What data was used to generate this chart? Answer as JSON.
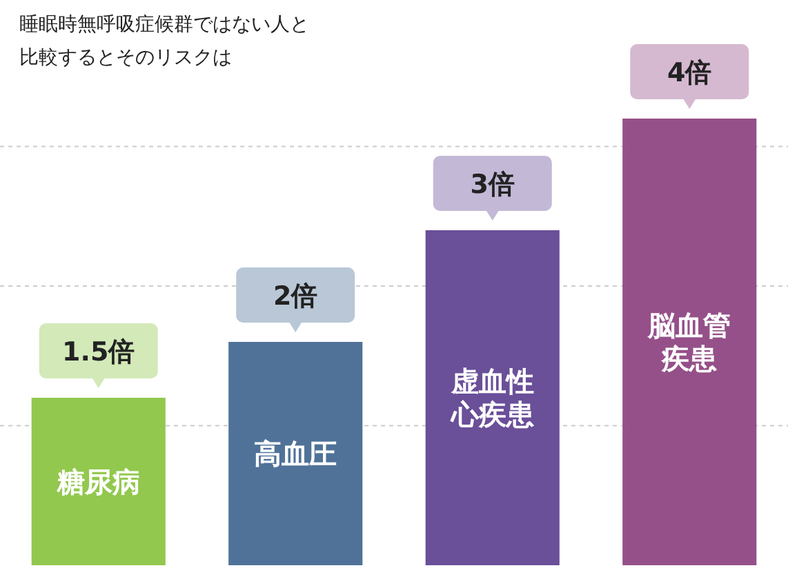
{
  "chart_data": {
    "type": "bar",
    "title": "睡眠時無呼吸症候群ではない人と比較するとそのリスクは",
    "categories": [
      "糖尿病",
      "高血圧",
      "虚血性心疾患",
      "脳血管疾患"
    ],
    "values": [
      1.5,
      2,
      3,
      4
    ],
    "value_labels": [
      "1.5倍",
      "2倍",
      "3倍",
      "4倍"
    ],
    "colors": [
      "#92c84e",
      "#507298",
      "#6a4f99",
      "#955089"
    ],
    "yticks": [
      {
        "value": 1.25,
        "label": null
      },
      {
        "value": 2.5,
        "label": null
      },
      {
        "value": 3.75,
        "label": null
      }
    ],
    "grid": "y"
  }
}
